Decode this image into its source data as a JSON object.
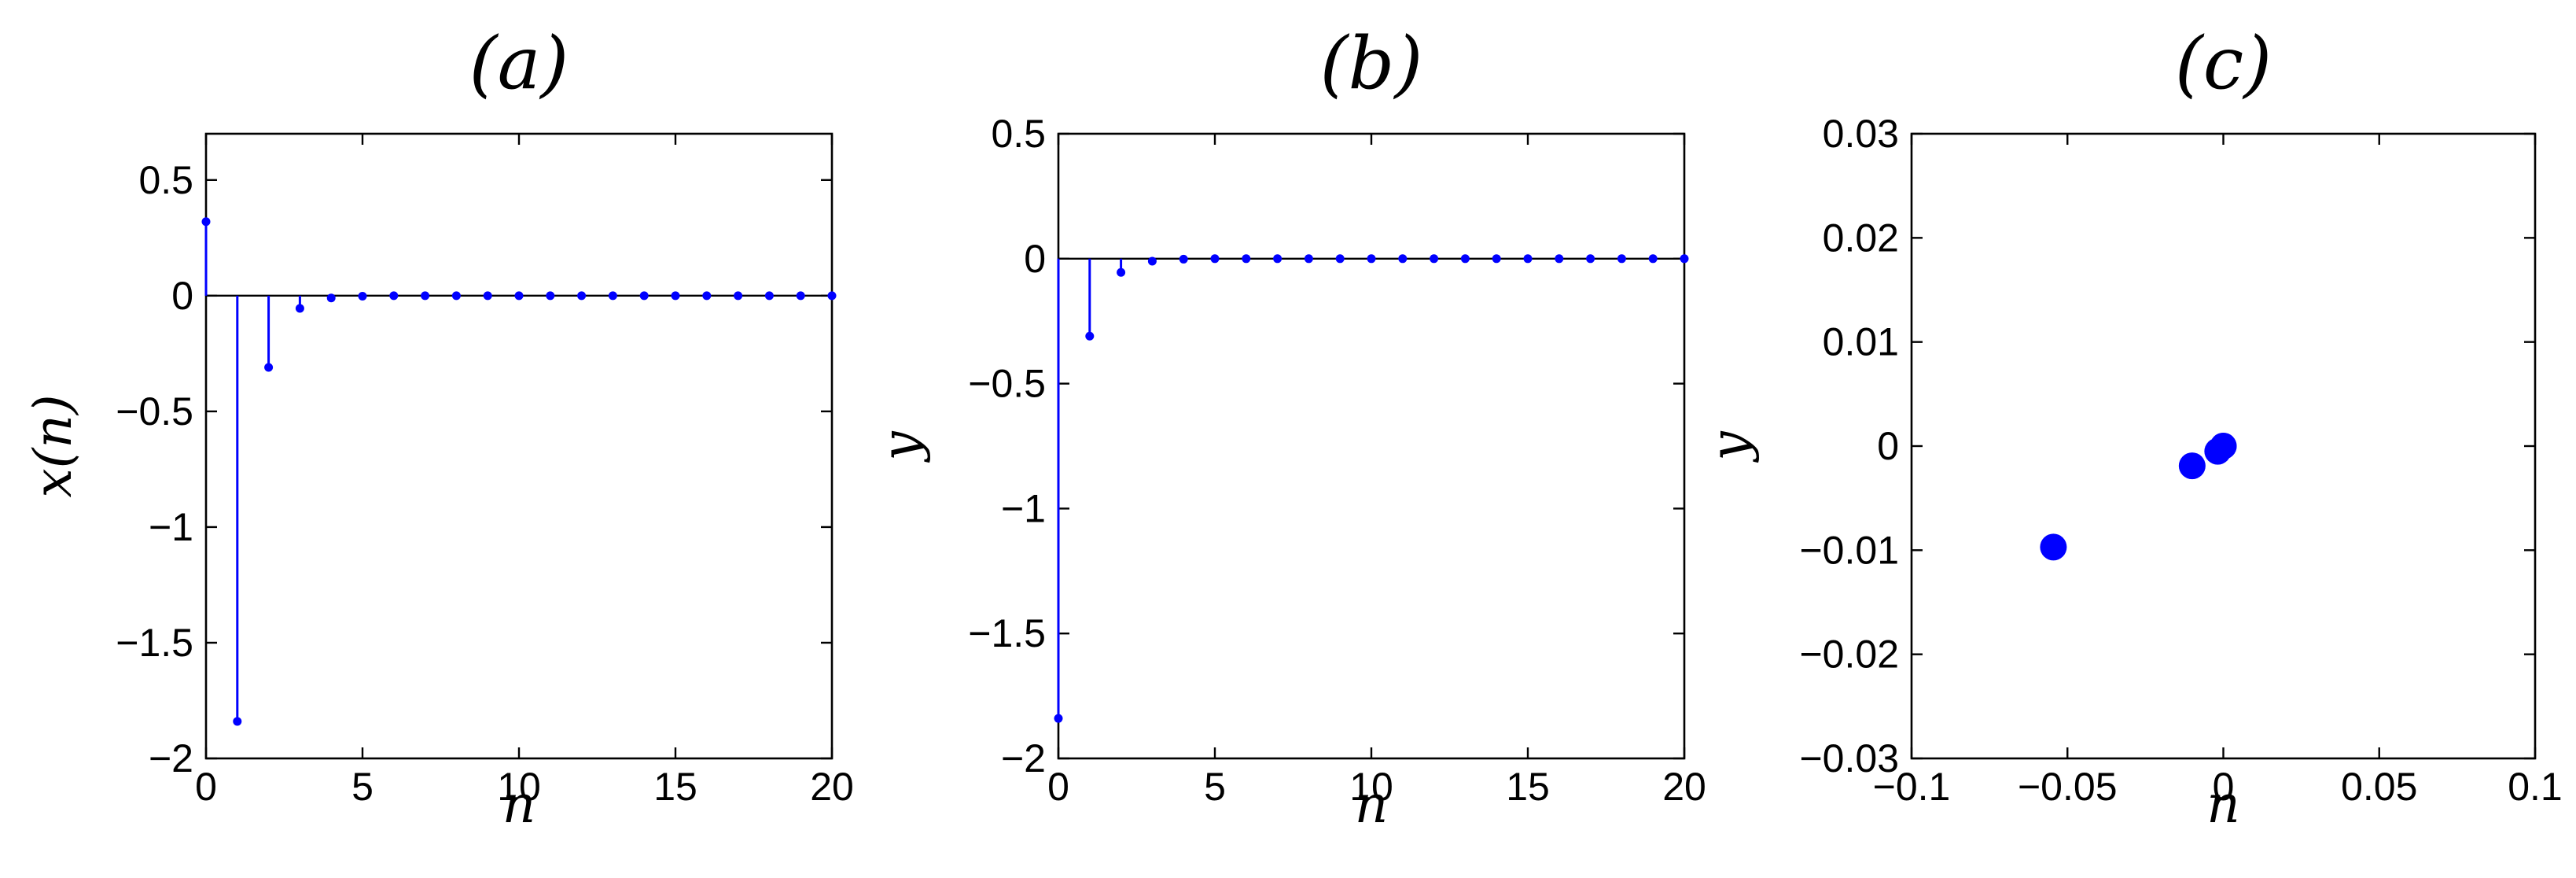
{
  "figure": {
    "mark_color": "#0000ff"
  },
  "chart_data": [
    {
      "type": "stem",
      "panel_label": "(a)",
      "title": "(a)",
      "xlabel": "n",
      "ylabel": "x(n)",
      "xlim": [
        0,
        20
      ],
      "ylim": [
        -2,
        0.7
      ],
      "xticks": [
        0,
        5,
        10,
        15,
        20
      ],
      "xtick_labels": [
        "0",
        "5",
        "10",
        "15",
        "20"
      ],
      "yticks": [
        0.5,
        0,
        -0.5,
        -1,
        -1.5,
        -2
      ],
      "ytick_labels": [
        "0.5",
        "0",
        "−0.5",
        "−1",
        "−1.5",
        "−2"
      ],
      "baseline": 0,
      "grid": false,
      "series": [
        {
          "x": [
            0,
            1,
            2,
            3,
            4,
            5,
            6,
            7,
            8,
            9,
            10,
            11,
            12,
            13,
            14,
            15,
            16,
            17,
            18,
            19,
            20
          ],
          "y": [
            0.32,
            -1.84,
            -0.31,
            -0.055,
            -0.01,
            -0.002,
            0,
            0,
            0,
            0,
            0,
            0,
            0,
            0,
            0,
            0,
            0,
            0,
            0,
            0,
            0
          ]
        }
      ]
    },
    {
      "type": "stem",
      "panel_label": "(b)",
      "title": "(b)",
      "xlabel": "n",
      "ylabel": "y",
      "xlim": [
        0,
        20
      ],
      "ylim": [
        -2,
        0.5
      ],
      "xticks": [
        0,
        5,
        10,
        15,
        20
      ],
      "xtick_labels": [
        "0",
        "5",
        "10",
        "15",
        "20"
      ],
      "yticks": [
        0.5,
        0,
        -0.5,
        -1,
        -1.5,
        -2
      ],
      "ytick_labels": [
        "0.5",
        "0",
        "−0.5",
        "−1",
        "−1.5",
        "−2"
      ],
      "baseline": 0,
      "grid": false,
      "series": [
        {
          "x": [
            0,
            1,
            2,
            3,
            4,
            5,
            6,
            7,
            8,
            9,
            10,
            11,
            12,
            13,
            14,
            15,
            16,
            17,
            18,
            19,
            20
          ],
          "y": [
            -1.84,
            -0.31,
            -0.055,
            -0.01,
            -0.002,
            0,
            0,
            0,
            0,
            0,
            0,
            0,
            0,
            0,
            0,
            0,
            0,
            0,
            0,
            0,
            0
          ]
        }
      ]
    },
    {
      "type": "scatter",
      "panel_label": "(c)",
      "title": "(c)",
      "xlabel": "n",
      "ylabel": "y",
      "xlim": [
        -0.1,
        0.1
      ],
      "ylim": [
        -0.03,
        0.03
      ],
      "xticks": [
        -0.1,
        -0.05,
        0,
        0.05,
        0.1
      ],
      "xtick_labels": [
        "−0.1",
        "−0.05",
        "0",
        "0.05",
        "0.1"
      ],
      "yticks": [
        0.03,
        0.02,
        0.01,
        0,
        -0.01,
        -0.02,
        -0.03
      ],
      "ytick_labels": [
        "0.03",
        "0.02",
        "0.01",
        "0",
        "−0.01",
        "−0.02",
        "−0.03"
      ],
      "grid": false,
      "series": [
        {
          "x": [
            -0.0545,
            -0.01,
            -0.0018,
            0,
            0
          ],
          "y": [
            -0.0097,
            -0.0019,
            -0.0005,
            0,
            0
          ]
        }
      ]
    }
  ]
}
